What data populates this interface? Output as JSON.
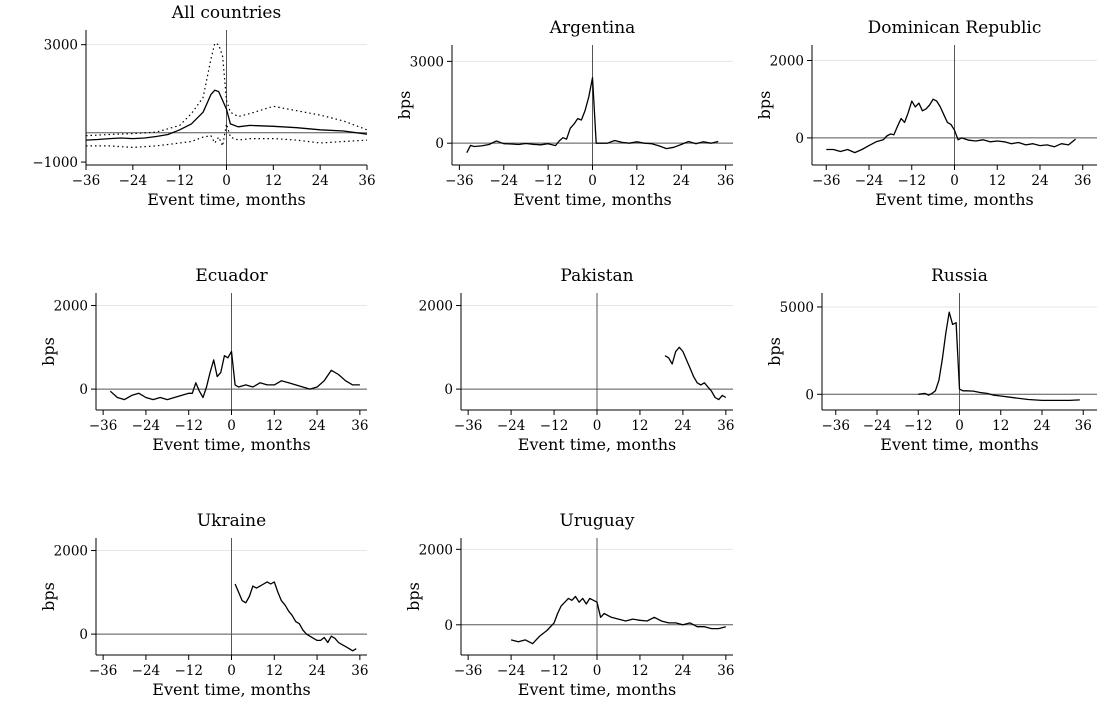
{
  "figure": {
    "event_line_value": 0
  },
  "chart_data": [
    {
      "type": "line",
      "title": "All countries",
      "xlabel": "Event time, months",
      "ylabel": "",
      "xlim": [
        -36,
        36
      ],
      "ylim": [
        -1100,
        3500
      ],
      "xticks": [
        -36,
        -24,
        -12,
        0,
        12,
        24,
        36
      ],
      "yticks": [
        -1000,
        3000
      ],
      "ytick_labels": [
        "−1000",
        "3000"
      ],
      "hline": 0,
      "grid_y": [
        3000
      ],
      "series": [
        {
          "style": "solid",
          "x": [
            -36,
            -33,
            -30,
            -27,
            -24,
            -21,
            -18,
            -15,
            -12,
            -9,
            -6,
            -4,
            -3,
            -2,
            -1,
            0,
            1,
            3,
            6,
            12,
            18,
            24,
            30,
            36
          ],
          "y": [
            -250,
            -230,
            -200,
            -180,
            -200,
            -180,
            -130,
            -60,
            100,
            300,
            700,
            1300,
            1450,
            1400,
            1100,
            800,
            300,
            200,
            250,
            220,
            170,
            100,
            60,
            -50
          ]
        },
        {
          "style": "dotted",
          "x": [
            -36,
            -30,
            -24,
            -18,
            -12,
            -9,
            -6,
            -4,
            -3,
            -2,
            -1,
            0,
            1,
            3,
            6,
            12,
            18,
            24,
            30,
            36
          ],
          "y": [
            -100,
            -60,
            -30,
            20,
            250,
            650,
            1200,
            2500,
            3050,
            3000,
            2600,
            1100,
            700,
            550,
            650,
            900,
            750,
            600,
            400,
            100
          ]
        },
        {
          "style": "dotted",
          "x": [
            -36,
            -30,
            -24,
            -18,
            -12,
            -9,
            -6,
            -4,
            -3,
            -2,
            -1,
            0,
            1,
            3,
            6,
            12,
            18,
            24,
            30,
            36
          ],
          "y": [
            -450,
            -450,
            -500,
            -450,
            -350,
            -300,
            -150,
            -100,
            -350,
            -150,
            -450,
            300,
            -150,
            -250,
            -200,
            -200,
            -250,
            -350,
            -300,
            -250
          ]
        }
      ]
    },
    {
      "type": "line",
      "title": "Argentina",
      "xlabel": "Event time, months",
      "ylabel": "bps",
      "xlim": [
        -38,
        38
      ],
      "ylim": [
        -800,
        3600
      ],
      "xticks": [
        -36,
        -24,
        -12,
        0,
        12,
        24,
        36
      ],
      "yticks": [
        0,
        3000
      ],
      "ytick_labels": [
        "0",
        "3000"
      ],
      "hline": 0,
      "grid_y": [
        3000
      ],
      "series": [
        {
          "style": "solid",
          "x": [
            -34,
            -33,
            -32,
            -30,
            -28,
            -26,
            -24,
            -22,
            -20,
            -18,
            -16,
            -14,
            -12,
            -10,
            -9,
            -8,
            -7,
            -6,
            -5,
            -4,
            -3,
            -2,
            -1,
            0,
            1,
            2,
            4,
            6,
            8,
            10,
            12,
            14,
            16,
            18,
            20,
            22,
            24,
            26,
            28,
            30,
            32,
            34
          ],
          "y": [
            -350,
            -80,
            -120,
            -100,
            -50,
            80,
            -20,
            -30,
            -50,
            -10,
            -40,
            -60,
            -20,
            -90,
            80,
            200,
            150,
            550,
            700,
            900,
            850,
            1200,
            1700,
            2400,
            0,
            0,
            0,
            100,
            30,
            0,
            50,
            0,
            -20,
            -100,
            -200,
            -150,
            -50,
            60,
            -20,
            50,
            0,
            60
          ]
        }
      ]
    },
    {
      "type": "line",
      "title": "Dominican Republic",
      "xlabel": "Event time, months",
      "ylabel": "bps",
      "xlim": [
        -40,
        40
      ],
      "ylim": [
        -700,
        2400
      ],
      "xticks": [
        -36,
        -24,
        -12,
        0,
        12,
        24,
        36
      ],
      "yticks": [
        0,
        2000
      ],
      "ytick_labels": [
        "0",
        "2000"
      ],
      "hline": 0,
      "grid_y": [
        2000
      ],
      "series": [
        {
          "style": "solid",
          "x": [
            -36,
            -34,
            -32,
            -30,
            -28,
            -26,
            -24,
            -22,
            -20,
            -19,
            -18,
            -17,
            -16,
            -15,
            -14,
            -13,
            -12,
            -11,
            -10,
            -9,
            -8,
            -7,
            -6,
            -5,
            -4,
            -3,
            -2,
            -1,
            0,
            1,
            2,
            4,
            6,
            8,
            10,
            12,
            14,
            16,
            18,
            20,
            22,
            24,
            26,
            28,
            30,
            32,
            34
          ],
          "y": [
            -300,
            -300,
            -350,
            -300,
            -380,
            -300,
            -200,
            -100,
            -50,
            50,
            100,
            80,
            300,
            500,
            400,
            650,
            950,
            800,
            900,
            700,
            750,
            850,
            1000,
            950,
            800,
            600,
            400,
            350,
            200,
            -50,
            0,
            -60,
            -80,
            -50,
            -100,
            -80,
            -100,
            -150,
            -120,
            -180,
            -150,
            -200,
            -180,
            -230,
            -150,
            -180,
            -30
          ]
        }
      ]
    },
    {
      "type": "line",
      "title": "Ecuador",
      "xlabel": "Event time, months",
      "ylabel": "bps",
      "xlim": [
        -38,
        38
      ],
      "ylim": [
        -500,
        2300
      ],
      "xticks": [
        -36,
        -24,
        -12,
        0,
        12,
        24,
        36
      ],
      "yticks": [
        0,
        2000
      ],
      "ytick_labels": [
        "0",
        "2000"
      ],
      "hline": 0,
      "grid_y": [
        2000
      ],
      "series": [
        {
          "style": "solid",
          "x": [
            -34,
            -32,
            -30,
            -28,
            -26,
            -24,
            -22,
            -20,
            -18,
            -16,
            -14,
            -12,
            -11,
            -10,
            -9,
            -8,
            -7,
            -6,
            -5,
            -4,
            -3,
            -2,
            -1,
            0,
            1,
            2,
            4,
            6,
            8,
            10,
            12,
            14,
            16,
            18,
            20,
            22,
            24,
            26,
            28,
            30,
            32,
            34,
            36
          ],
          "y": [
            -50,
            -200,
            -250,
            -150,
            -100,
            -200,
            -250,
            -200,
            -250,
            -200,
            -150,
            -100,
            -100,
            150,
            -50,
            -200,
            50,
            400,
            700,
            300,
            400,
            800,
            750,
            900,
            100,
            50,
            100,
            50,
            150,
            100,
            100,
            200,
            150,
            100,
            50,
            0,
            50,
            200,
            450,
            350,
            200,
            100,
            100
          ]
        }
      ]
    },
    {
      "type": "line",
      "title": "Pakistan",
      "xlabel": "Event time, months",
      "ylabel": "",
      "xlim": [
        -38,
        38
      ],
      "ylim": [
        -500,
        2300
      ],
      "xticks": [
        -36,
        -24,
        -12,
        0,
        12,
        24,
        36
      ],
      "yticks": [
        0,
        2000
      ],
      "ytick_labels": [
        "0",
        "2000"
      ],
      "hline": 0,
      "grid_y": [
        2000
      ],
      "series": [
        {
          "style": "solid",
          "x": [
            19,
            20,
            21,
            22,
            23,
            24,
            25,
            26,
            27,
            28,
            29,
            30,
            31,
            32,
            33,
            34,
            35,
            36
          ],
          "y": [
            800,
            750,
            600,
            900,
            1000,
            900,
            700,
            500,
            300,
            150,
            100,
            150,
            50,
            -50,
            -200,
            -250,
            -150,
            -200
          ]
        }
      ]
    },
    {
      "type": "line",
      "title": "Russia",
      "xlabel": "Event time, months",
      "ylabel": "bps",
      "xlim": [
        -40,
        40
      ],
      "ylim": [
        -900,
        5800
      ],
      "xticks": [
        -36,
        -24,
        -12,
        0,
        12,
        24,
        36
      ],
      "yticks": [
        0,
        5000
      ],
      "ytick_labels": [
        "0",
        "5000"
      ],
      "hline": 0,
      "grid_y": [
        5000
      ],
      "series": [
        {
          "style": "solid",
          "x": [
            -12,
            -10,
            -9,
            -8,
            -7,
            -6,
            -5,
            -4,
            -3,
            -2,
            -1,
            0,
            1,
            2,
            4,
            6,
            8,
            10,
            12,
            16,
            20,
            24,
            28,
            32,
            35
          ],
          "y": [
            0,
            50,
            -50,
            50,
            200,
            800,
            2000,
            3500,
            4700,
            4000,
            4100,
            300,
            200,
            200,
            180,
            100,
            50,
            -50,
            -100,
            -200,
            -300,
            -350,
            -350,
            -350,
            -320
          ]
        }
      ]
    },
    {
      "type": "line",
      "title": "Ukraine",
      "xlabel": "Event time, months",
      "ylabel": "bps",
      "xlim": [
        -38,
        38
      ],
      "ylim": [
        -500,
        2300
      ],
      "xticks": [
        -36,
        -24,
        -12,
        0,
        12,
        24,
        36
      ],
      "yticks": [
        0,
        2000
      ],
      "ytick_labels": [
        "0",
        "2000"
      ],
      "hline": 0,
      "grid_y": [
        2000
      ],
      "series": [
        {
          "style": "solid",
          "x": [
            1,
            2,
            3,
            4,
            5,
            6,
            7,
            8,
            9,
            10,
            11,
            12,
            13,
            14,
            15,
            16,
            17,
            18,
            19,
            20,
            21,
            22,
            23,
            24,
            25,
            26,
            27,
            28,
            29,
            30,
            31,
            32,
            33,
            34,
            35
          ],
          "y": [
            1200,
            1000,
            800,
            750,
            900,
            1150,
            1100,
            1150,
            1200,
            1250,
            1200,
            1250,
            1000,
            800,
            700,
            550,
            450,
            300,
            250,
            100,
            0,
            -50,
            -100,
            -150,
            -150,
            -80,
            -200,
            -50,
            -100,
            -200,
            -250,
            -300,
            -350,
            -400,
            -350
          ]
        }
      ]
    },
    {
      "type": "line",
      "title": "Uruguay",
      "xlabel": "Event time, months",
      "ylabel": "bps",
      "xlim": [
        -38,
        38
      ],
      "ylim": [
        -800,
        2300
      ],
      "xticks": [
        -36,
        -24,
        -12,
        0,
        12,
        24,
        36
      ],
      "yticks": [
        0,
        2000
      ],
      "ytick_labels": [
        "0",
        "2000"
      ],
      "hline": 0,
      "grid_y": [
        2000
      ],
      "series": [
        {
          "style": "solid",
          "x": [
            -24,
            -22,
            -20,
            -18,
            -16,
            -14,
            -12,
            -11,
            -10,
            -9,
            -8,
            -7,
            -6,
            -5,
            -4,
            -3,
            -2,
            -1,
            0,
            1,
            2,
            4,
            6,
            8,
            10,
            12,
            14,
            16,
            18,
            20,
            22,
            24,
            26,
            28,
            30,
            32,
            34,
            36
          ],
          "y": [
            -400,
            -450,
            -400,
            -500,
            -300,
            -150,
            50,
            300,
            500,
            600,
            700,
            650,
            750,
            600,
            700,
            550,
            700,
            650,
            600,
            200,
            300,
            200,
            150,
            100,
            150,
            120,
            100,
            200,
            100,
            50,
            50,
            0,
            50,
            -50,
            -50,
            -100,
            -100,
            -50
          ]
        }
      ]
    }
  ]
}
